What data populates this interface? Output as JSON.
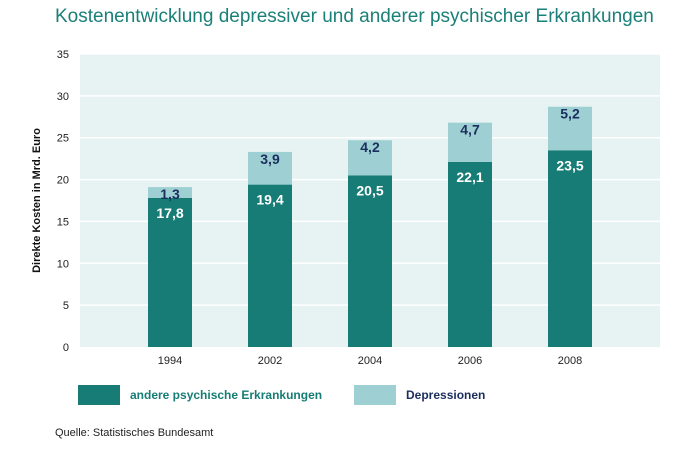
{
  "chart_data": {
    "type": "bar",
    "stacked": true,
    "title": "Kostenentwicklung depressiver und anderer psychischer Erkrankungen",
    "ylabel": "Direkte Kosten in Mrd. Euro",
    "categories": [
      "1994",
      "2002",
      "2004",
      "2006",
      "2008"
    ],
    "series": [
      {
        "name": "andere psychische Erkrankungen",
        "color": "#167c75",
        "values": [
          17.8,
          19.4,
          20.5,
          22.1,
          23.5
        ],
        "labels": [
          "17,8",
          "19,4",
          "20,5",
          "22,1",
          "23,5"
        ]
      },
      {
        "name": "Depressionen",
        "color": "#9ecfd3",
        "values": [
          1.3,
          3.9,
          4.2,
          4.7,
          5.2
        ],
        "labels": [
          "1,3",
          "3,9",
          "4,2",
          "4,7",
          "5,2"
        ]
      }
    ],
    "ylim": [
      0,
      35
    ],
    "yticks": [
      0,
      5,
      10,
      15,
      20,
      25,
      30,
      35
    ],
    "grid": true,
    "legend_position": "bottom-left",
    "colors": {
      "plot_background": "#e7f2f3",
      "title": "#1a8078",
      "lower_label_text": "#ffffff",
      "upper_label_text": "#1b2f5e"
    }
  },
  "source": "Quelle: Statistisches Bundesamt"
}
